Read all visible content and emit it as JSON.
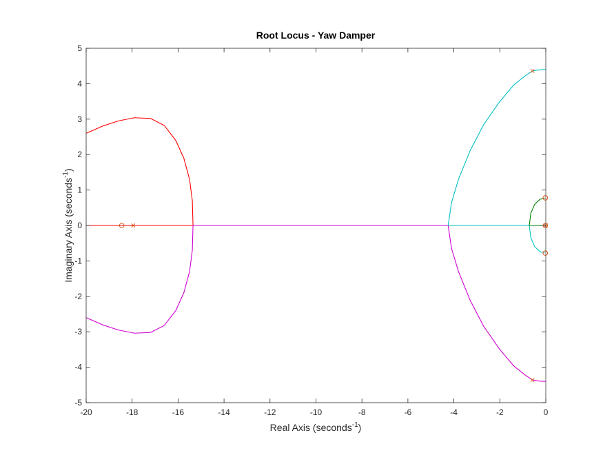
{
  "chart_data": {
    "type": "scatter",
    "title": "Root Locus - Yaw Damper",
    "xlabel": {
      "text": "Real Axis (seconds",
      "sup": "-1",
      "close": ")"
    },
    "ylabel": {
      "text": "Imaginary Axis (seconds",
      "sup": "-1",
      "close": ")"
    },
    "xlim": [
      -20,
      0
    ],
    "ylim": [
      -5,
      5
    ],
    "xticks": [
      -20,
      -18,
      -16,
      -14,
      -12,
      -10,
      -8,
      -6,
      -4,
      -2,
      0
    ],
    "yticks": [
      -5,
      -4,
      -3,
      -2,
      -1,
      0,
      1,
      2,
      3,
      4,
      5
    ],
    "grid": false,
    "colors": {
      "red": "#ff0000",
      "magenta": "#d000d0",
      "cyan": "#00bfc4",
      "green": "#008000",
      "marker": "#d95319",
      "axis": "#262626"
    },
    "series": [
      {
        "color": "red",
        "points": [
          [
            -17.9,
            0
          ],
          [
            -20,
            0
          ]
        ]
      },
      {
        "color": "red",
        "points": [
          [
            -18.45,
            0
          ],
          [
            -18.0,
            0
          ],
          [
            -17.5,
            0
          ],
          [
            -17.0,
            0
          ],
          [
            -16.5,
            0
          ],
          [
            -16.0,
            0
          ],
          [
            -15.6,
            0
          ],
          [
            -15.35,
            0
          ]
        ]
      },
      {
        "color": "red",
        "points": [
          [
            -15.35,
            0
          ],
          [
            -15.38,
            0.7
          ],
          [
            -15.5,
            1.3
          ],
          [
            -15.75,
            1.9
          ],
          [
            -16.1,
            2.4
          ],
          [
            -16.6,
            2.82
          ],
          [
            -17.2,
            3.02
          ],
          [
            -17.9,
            3.04
          ],
          [
            -18.6,
            2.95
          ],
          [
            -19.3,
            2.8
          ],
          [
            -20,
            2.6
          ]
        ]
      },
      {
        "color": "magenta",
        "points": [
          [
            -15.35,
            0
          ],
          [
            -15.38,
            -0.7
          ],
          [
            -15.5,
            -1.3
          ],
          [
            -15.75,
            -1.9
          ],
          [
            -16.1,
            -2.4
          ],
          [
            -16.6,
            -2.82
          ],
          [
            -17.2,
            -3.02
          ],
          [
            -17.9,
            -3.04
          ],
          [
            -18.6,
            -2.95
          ],
          [
            -19.3,
            -2.8
          ],
          [
            -20,
            -2.6
          ]
        ]
      },
      {
        "color": "magenta",
        "points": [
          [
            -15.35,
            0
          ],
          [
            -12,
            0
          ],
          [
            -8,
            0
          ],
          [
            -4.25,
            0
          ]
        ]
      },
      {
        "color": "cyan",
        "points": [
          [
            -0.58,
            4.36
          ],
          [
            -0.9,
            4.22
          ],
          [
            -1.4,
            3.96
          ],
          [
            -2.0,
            3.5
          ],
          [
            -2.7,
            2.85
          ],
          [
            -3.3,
            2.1
          ],
          [
            -3.8,
            1.3
          ],
          [
            -4.1,
            0.65
          ],
          [
            -4.25,
            0
          ]
        ]
      },
      {
        "color": "cyan",
        "points": [
          [
            -0.58,
            4.36
          ],
          [
            -0.3,
            4.39
          ],
          [
            0,
            4.4
          ]
        ]
      },
      {
        "color": "magenta",
        "points": [
          [
            -0.58,
            -4.36
          ],
          [
            -0.9,
            -4.22
          ],
          [
            -1.4,
            -3.96
          ],
          [
            -2.0,
            -3.5
          ],
          [
            -2.7,
            -2.85
          ],
          [
            -3.3,
            -2.1
          ],
          [
            -3.8,
            -1.3
          ],
          [
            -4.1,
            -0.65
          ],
          [
            -4.25,
            0
          ]
        ]
      },
      {
        "color": "magenta",
        "points": [
          [
            -0.58,
            -4.36
          ],
          [
            -0.3,
            -4.39
          ],
          [
            0,
            -4.4
          ]
        ]
      },
      {
        "color": "cyan",
        "points": [
          [
            -4.25,
            0
          ],
          [
            -3,
            0
          ],
          [
            -1.5,
            0
          ],
          [
            -0.7,
            0
          ],
          [
            0,
            0
          ]
        ]
      },
      {
        "color": "green",
        "points": [
          [
            -0.72,
            0
          ],
          [
            -0.65,
            0.35
          ],
          [
            -0.48,
            0.6
          ],
          [
            -0.25,
            0.74
          ],
          [
            -0.05,
            0.77
          ]
        ]
      },
      {
        "color": "cyan",
        "points": [
          [
            -0.72,
            0
          ],
          [
            -0.65,
            -0.35
          ],
          [
            -0.48,
            -0.6
          ],
          [
            -0.25,
            -0.74
          ],
          [
            -0.05,
            -0.77
          ]
        ]
      },
      {
        "color": "green",
        "points": [
          [
            -0.72,
            0
          ],
          [
            0,
            0
          ]
        ]
      }
    ],
    "poles": [
      [
        -17.95,
        0
      ],
      [
        -0.58,
        4.36
      ],
      [
        -0.58,
        -4.36
      ],
      [
        0,
        0
      ]
    ],
    "zeros": [
      [
        -18.45,
        0
      ],
      [
        -0.02,
        0.78
      ],
      [
        -0.02,
        -0.78
      ],
      [
        -0.02,
        0
      ]
    ]
  }
}
